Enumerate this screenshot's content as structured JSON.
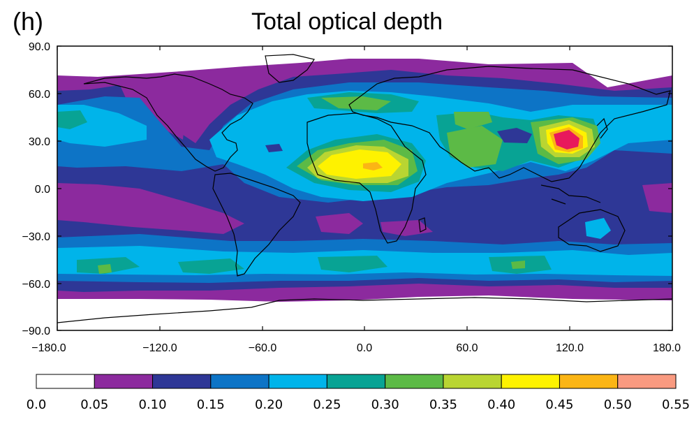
{
  "panel_label": "(h)",
  "title": "Total optical depth",
  "map": {
    "y_ticks": [
      "90.0",
      "60.0",
      "30.0",
      "0.0",
      "−30.0",
      "−60.0",
      "−90.0"
    ],
    "x_ticks": [
      "−180.0",
      "−120.0",
      "−60.0",
      "0.0",
      "60.0",
      "120.0",
      "180.0"
    ],
    "lon_range": [
      -180,
      180
    ],
    "lat_range": [
      -90,
      90
    ],
    "projection": "equirectangular",
    "field": "aerosol total optical depth"
  },
  "colorbar": {
    "labels": [
      "0.0",
      "0.05",
      "0.10",
      "0.15",
      "0.20",
      "0.25",
      "0.30",
      "0.35",
      "0.40",
      "0.45",
      "0.50",
      "0.55"
    ],
    "colors": [
      "#ffffff",
      "#8c2a9e",
      "#2e3796",
      "#0d74c6",
      "#00b4ea",
      "#08a394",
      "#5cba46",
      "#b9d532",
      "#fef200",
      "#fbb515",
      "#f99a80"
    ]
  },
  "highlight_colors": {
    "max_east_asia": "#e8185c"
  }
}
